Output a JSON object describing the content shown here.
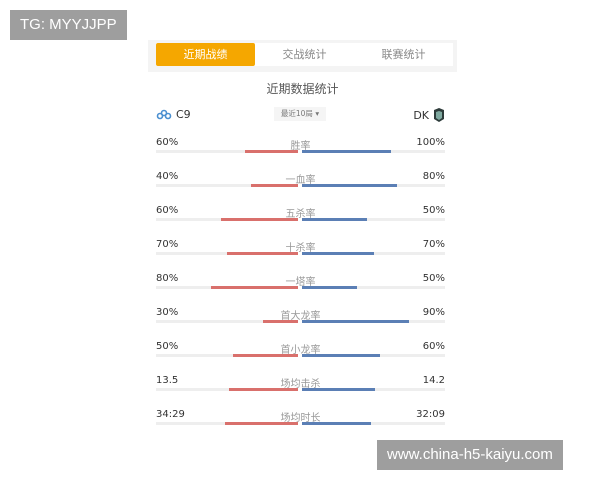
{
  "watermarks": {
    "top_left": "TG: MYYJJPP",
    "bottom_right": "www.china-h5-kaiyu.com"
  },
  "tabs": [
    {
      "label": "近期战绩",
      "active": true
    },
    {
      "label": "交战统计",
      "active": false
    },
    {
      "label": "联赛统计",
      "active": false
    }
  ],
  "section_title": "近期数据统计",
  "team_left": {
    "name": "C9",
    "icon": "cloud9-logo-icon",
    "color": "#5b7fb5"
  },
  "team_right": {
    "name": "DK",
    "icon": "dk-logo-icon"
  },
  "range_select": "最近10局 ▾",
  "colors": {
    "accent": "#f5a700",
    "left_bar": "#d9706c",
    "right_bar": "#5b7fb5"
  },
  "stats": [
    {
      "label": "胜率",
      "left": "60%",
      "right": "100%",
      "lv": 60,
      "rv": 100
    },
    {
      "label": "一血率",
      "left": "40%",
      "right": "80%",
      "lv": 40,
      "rv": 80
    },
    {
      "label": "五杀率",
      "left": "60%",
      "right": "50%",
      "lv": 60,
      "rv": 50
    },
    {
      "label": "十杀率",
      "left": "70%",
      "right": "70%",
      "lv": 70,
      "rv": 70
    },
    {
      "label": "一塔率",
      "left": "80%",
      "right": "50%",
      "lv": 80,
      "rv": 50
    },
    {
      "label": "首大龙率",
      "left": "30%",
      "right": "90%",
      "lv": 30,
      "rv": 90
    },
    {
      "label": "首小龙率",
      "left": "50%",
      "right": "60%",
      "lv": 50,
      "rv": 60
    },
    {
      "label": "场均击杀",
      "left": "13.5",
      "right": "14.2",
      "lv": 13.5,
      "rv": 14.2
    },
    {
      "label": "场均时长",
      "left": "34:29",
      "right": "32:09",
      "lv": 2069,
      "rv": 1929
    }
  ]
}
